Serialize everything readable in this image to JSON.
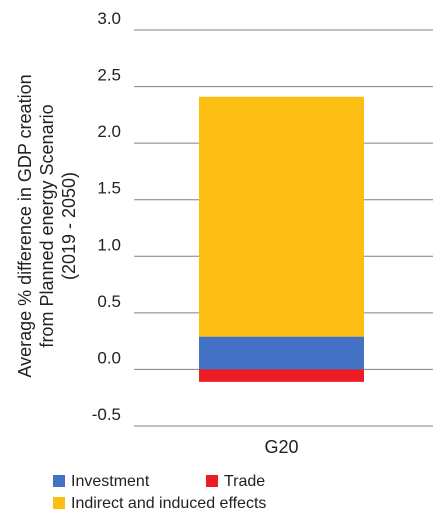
{
  "chart_data": {
    "type": "bar",
    "stacked": true,
    "categories": [
      "G20"
    ],
    "series": [
      {
        "name": "Investment",
        "values": [
          0.29
        ],
        "color": "#4472c4"
      },
      {
        "name": "Trade",
        "values": [
          -0.11
        ],
        "color": "#ed1c24"
      },
      {
        "name": "Indirect and induced effects",
        "values": [
          2.12
        ],
        "color": "#fdbe14"
      }
    ],
    "ylabel": "Average % difference in GDP creation from Planned energy Scenario (2019 - 2050)",
    "ylabel_lines": [
      "Average % difference in GDP creation",
      "from Planned energy Scenario",
      "(2019 - 2050)"
    ],
    "xlabel": "",
    "ylim": [
      -0.5,
      3.0
    ],
    "yticks": [
      3.0,
      2.5,
      2.0,
      1.5,
      1.0,
      0.5,
      0.0,
      -0.5
    ],
    "ytick_labels": [
      "3.0",
      "2.5",
      "2.0",
      "1.5",
      "1.0",
      "0.5",
      "0.0",
      "-0.5"
    ],
    "grid": true,
    "legend_position": "bottom-left"
  }
}
